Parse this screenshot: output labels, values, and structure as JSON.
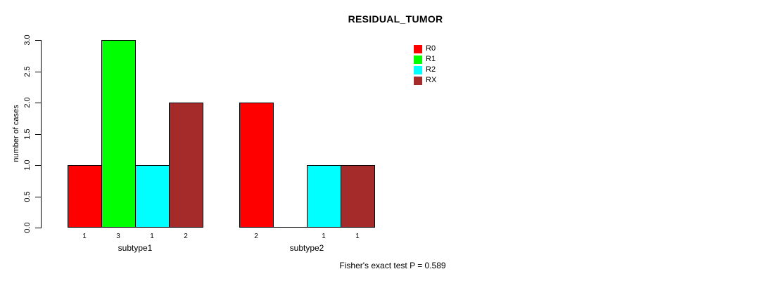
{
  "chart_data": {
    "type": "bar",
    "title": "RESIDUAL_TUMOR",
    "ylabel": "number of cases",
    "footer": "Fisher's exact test P = 0.589",
    "ylim": [
      0,
      3
    ],
    "yticks": [
      {
        "value": 0,
        "label": "0.0"
      },
      {
        "value": 0.5,
        "label": "0.5"
      },
      {
        "value": 1,
        "label": "1.0"
      },
      {
        "value": 1.5,
        "label": "1.5"
      },
      {
        "value": 2,
        "label": "2.0"
      },
      {
        "value": 2.5,
        "label": "2.5"
      },
      {
        "value": 3,
        "label": "3.0"
      }
    ],
    "series": [
      {
        "name": "R0",
        "color": "#FF0000"
      },
      {
        "name": "R1",
        "color": "#00FF00"
      },
      {
        "name": "R2",
        "color": "#00FFFF"
      },
      {
        "name": "RX",
        "color": "#A52A2A"
      }
    ],
    "legend": {
      "position": "top-right",
      "entries": [
        "R0",
        "R1",
        "R2",
        "RX"
      ]
    },
    "categories": [
      "subtype1",
      "subtype2"
    ],
    "groups": [
      {
        "label": "subtype1",
        "values": [
          1,
          3,
          1,
          2
        ],
        "bar_labels": [
          "1",
          "3",
          "1",
          "2"
        ]
      },
      {
        "label": "subtype2",
        "values": [
          2,
          0,
          1,
          1
        ],
        "bar_labels": [
          "2",
          "",
          "1",
          "1"
        ]
      }
    ],
    "grid": false,
    "background": "#FFFFFF",
    "axis_color": "#000000"
  }
}
